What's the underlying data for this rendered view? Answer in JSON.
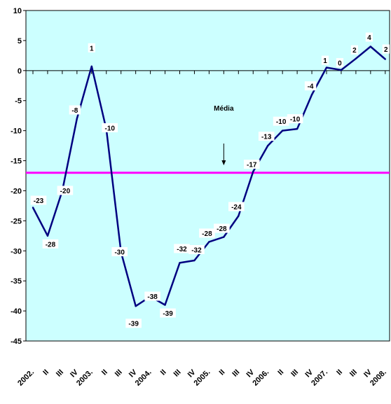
{
  "chart_data": {
    "type": "line",
    "title": "",
    "xlabel": "",
    "ylabel": "",
    "ylim": [
      -45,
      10
    ],
    "yticks": [
      "10",
      "5",
      "0",
      "-5",
      "-10",
      "-15",
      "-20",
      "-25",
      "-30",
      "-35",
      "-40",
      "-45"
    ],
    "xtick_labels": [
      "2002",
      "II",
      "III",
      "IV",
      "2003",
      "II",
      "III",
      "IV",
      "2004",
      "II",
      "III",
      "IV",
      "2005",
      "II",
      "III",
      "IV",
      "2006",
      "II",
      "III",
      "IV",
      "2007",
      "II",
      "III",
      "IV",
      "2008"
    ],
    "series": [
      {
        "values": [
          -22.8,
          -27.5,
          -20,
          -8,
          0.7,
          -9.8,
          -30.2,
          -39.2,
          -37.6,
          -39,
          -32,
          -31.6,
          -28.5,
          -27.7,
          -24.2,
          -16.8,
          -12.5,
          -10,
          -9.7,
          -4,
          0.5,
          0.1,
          2,
          4,
          1.9
        ],
        "labels": [
          "-23",
          "-28",
          "-20",
          "-8",
          "1",
          "-10",
          "-30",
          "-39",
          "-38",
          "-39",
          "-32",
          "-32",
          "-28",
          "-28",
          "-24",
          "-17",
          "-13",
          "-10",
          "-10",
          "-4",
          "1",
          "0",
          "2",
          "4",
          "2"
        ],
        "color": "#000080"
      }
    ],
    "average": {
      "value": -17,
      "label": "Média",
      "color": "#ff00ff"
    },
    "plot_background": "#ccffff",
    "grid": false,
    "legend": "none"
  }
}
